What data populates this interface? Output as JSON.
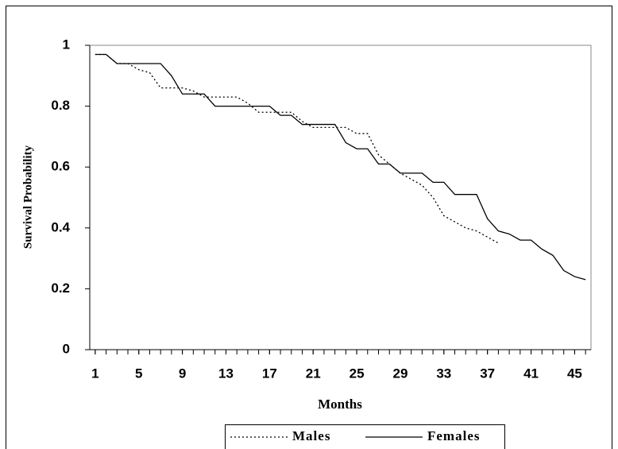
{
  "chart_data": {
    "type": "line",
    "xlabel": "Months",
    "ylabel": "Survival Probability",
    "x": [
      1,
      2,
      3,
      4,
      5,
      6,
      7,
      8,
      9,
      10,
      11,
      12,
      13,
      14,
      15,
      16,
      17,
      18,
      19,
      20,
      21,
      22,
      23,
      24,
      25,
      26,
      27,
      28,
      29,
      30,
      31,
      32,
      33,
      34,
      35,
      36,
      37,
      38,
      39,
      40,
      41,
      42,
      43,
      44,
      45,
      46
    ],
    "xlim": [
      0.5,
      46.5
    ],
    "xticks": [
      1,
      5,
      9,
      13,
      17,
      21,
      25,
      29,
      33,
      37,
      41,
      45
    ],
    "ylim": [
      0,
      1
    ],
    "yticks": [
      0,
      0.2,
      0.4,
      0.6,
      0.8,
      1
    ],
    "legend": "bottom",
    "series": [
      {
        "name": "Males",
        "color": "#000000",
        "style": "dotted",
        "values": [
          0.97,
          0.97,
          0.94,
          0.94,
          0.92,
          0.91,
          0.86,
          0.86,
          0.86,
          0.85,
          0.83,
          0.83,
          0.83,
          0.83,
          0.81,
          0.78,
          0.78,
          0.78,
          0.78,
          0.75,
          0.73,
          0.73,
          0.73,
          0.73,
          0.71,
          0.71,
          0.64,
          0.61,
          0.58,
          0.56,
          0.54,
          0.5,
          0.44,
          0.42,
          0.4,
          0.39,
          0.37,
          0.35,
          null,
          null,
          null,
          null,
          null,
          null,
          null,
          null
        ]
      },
      {
        "name": "Females",
        "color": "#000000",
        "style": "solid",
        "values": [
          0.97,
          0.97,
          0.94,
          0.94,
          0.94,
          0.94,
          0.94,
          0.9,
          0.84,
          0.84,
          0.84,
          0.8,
          0.8,
          0.8,
          0.8,
          0.8,
          0.8,
          0.77,
          0.77,
          0.74,
          0.74,
          0.74,
          0.74,
          0.68,
          0.66,
          0.66,
          0.61,
          0.61,
          0.58,
          0.58,
          0.58,
          0.55,
          0.55,
          0.51,
          0.51,
          0.51,
          0.43,
          0.39,
          0.38,
          0.36,
          0.36,
          0.33,
          0.31,
          0.26,
          0.24,
          0.23
        ]
      }
    ]
  }
}
